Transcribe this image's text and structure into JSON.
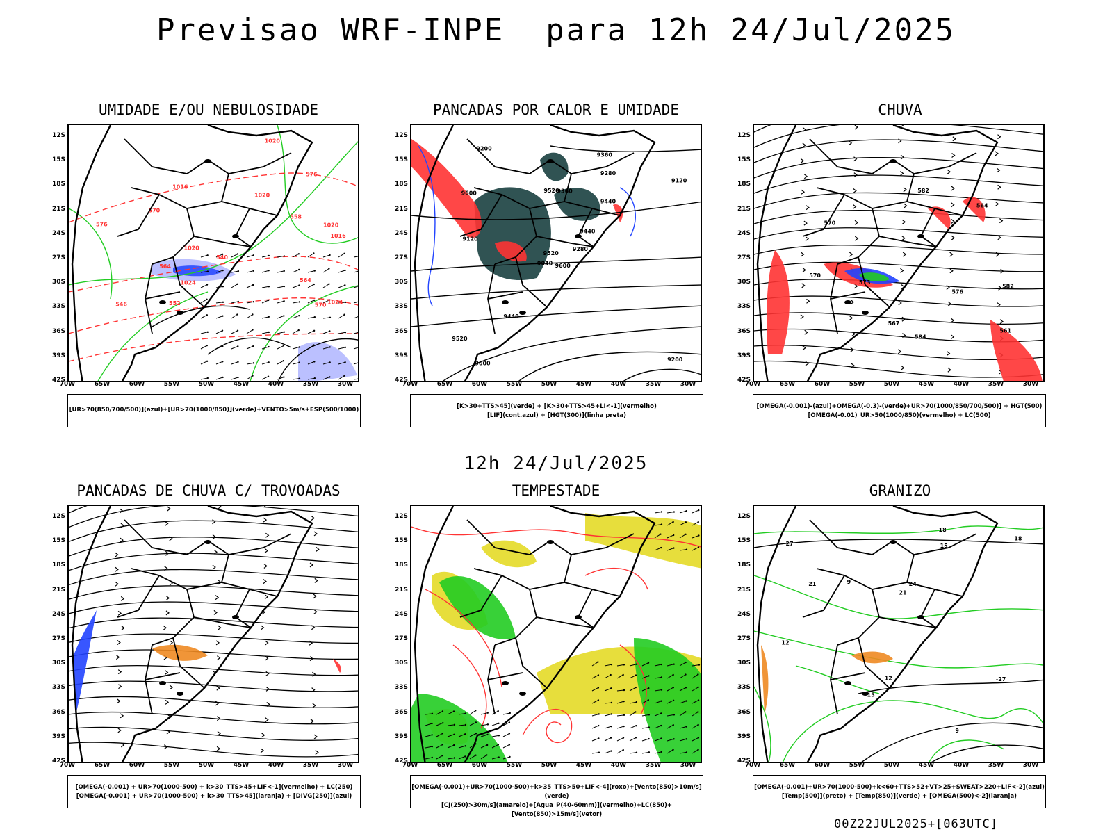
{
  "header": {
    "title": "Previsao WRF-INPE  para 12h 24/Jul/2025",
    "subtitle": "12h 24/Jul/2025"
  },
  "footer": {
    "run": "00Z22JUL2025+[063UTC]"
  },
  "axes": {
    "lat_ticks": [
      "12S",
      "15S",
      "18S",
      "21S",
      "24S",
      "27S",
      "30S",
      "33S",
      "36S",
      "39S",
      "42S"
    ],
    "lon_ticks": [
      "70W",
      "65W",
      "60W",
      "55W",
      "50W",
      "45W",
      "40W",
      "35W",
      "30W"
    ]
  },
  "colors": {
    "green": "#22cc22",
    "red": "#ff3333",
    "blue": "#2244ff",
    "darkteal": "#1a4040",
    "yellow": "#e6dc32",
    "orange": "#ee8a22",
    "lavender": "#aab0ff"
  },
  "panels": [
    {
      "title": "UMIDADE E/OU NEBULOSIDADE",
      "legend": [
        "[UR>70(850/700/500)](azul)+[UR>70(1000/850)](verde)+VENTO>5m/s+ESP(500/1000)"
      ],
      "contour_labels": [
        "1016",
        "1020",
        "1020",
        "1016",
        "1020",
        "1024",
        "1024",
        "1020",
        "570",
        "576",
        "570",
        "564",
        "558",
        "552",
        "546",
        "540",
        "564",
        "576"
      ]
    },
    {
      "title": "PANCADAS POR CALOR E UMIDADE",
      "legend": [
        "[K>30+TTS>45](verde) + [K>30+TTS>45+LI<-1](vermelho)",
        "[LIF](cont.azul) + [HGT(300)](linha preta)"
      ],
      "contour_labels": [
        "9600",
        "9600",
        "9520",
        "9520",
        "9440",
        "9440",
        "9360",
        "9360",
        "9280",
        "9280",
        "9200",
        "9200",
        "9120",
        "9120",
        "9040",
        "9440",
        "9600",
        "9520"
      ]
    },
    {
      "title": "CHUVA",
      "legend": [
        "[OMEGA(-0.001)-(azul)+OMEGA(-0.3)-(verde)+UR>70(1000/850/700/500)] + HGT(500)",
        "[OMEGA(-0.01)_UR>50(1000/850)(vermelho) + LC(500)"
      ],
      "contour_labels": [
        "582",
        "576",
        "573",
        "570",
        "570",
        "567",
        "564",
        "561",
        "584",
        "582"
      ]
    },
    {
      "title": "PANCADAS DE CHUVA C/ TROVOADAS",
      "legend": [
        "[OMEGA(-0.001) + UR>70(1000-500) + k>30_TTS>45+LIF<-1](vermelho) + LC(250)",
        "[OMEGA(-0.001) + UR>70(1000-500) + k>30_TTS>45](laranja) + [DIVG(250)](azul)"
      ],
      "contour_labels": []
    },
    {
      "title": "TEMPESTADE",
      "legend": [
        "[OMEGA(-0.001)+UR>70(1000-500)+k>35_TTS>50+LIF<-4](roxo)+[Vento(850)>10m/s](verde)",
        "[CJ(250)>30m/s](amarelo)+[Agua_P(40-60mm)](vermelho)+LC(850)+[Vento(850)>15m/s](vetor)"
      ],
      "contour_labels": []
    },
    {
      "title": "GRANIZO",
      "legend": [
        "[OMEGA(-0.001)+UR>70(1000-500)+k<60+TTS>52+VT>25+SWEAT>220+LIF<-2](azul)",
        "[Temp(500)](preto) + [Temp(850)](verde) + [OMEGA(500)<-2](laranja)"
      ],
      "contour_labels": [
        "9",
        "12",
        "15",
        "15",
        "18",
        "18",
        "21",
        "21",
        "24",
        "27",
        "-27",
        "12",
        "9"
      ]
    }
  ]
}
